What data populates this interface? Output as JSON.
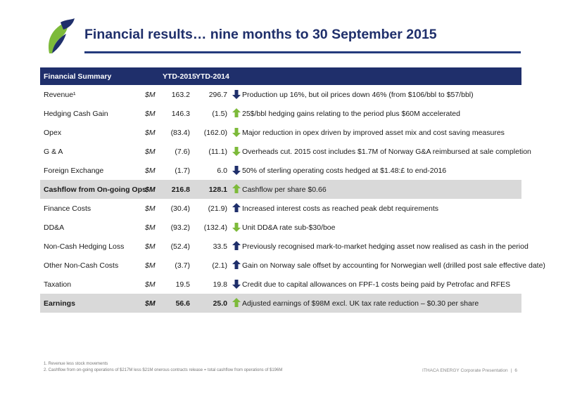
{
  "title": "Financial results… nine months to 30 September 2015",
  "colors": {
    "brand_navy": "#1f2f6b",
    "arrow_up": "#7dba3a",
    "arrow_down": "#1f2f6b",
    "arrow_good": "#7dba3a"
  },
  "table": {
    "headers": {
      "label": "Financial Summary",
      "ytd2015": "YTD-2015",
      "ytd2014": "YTD-2014"
    },
    "rows": [
      {
        "label": "Revenue¹",
        "unit": "$M",
        "ytd2015": "163.2",
        "ytd2014": "296.7",
        "arrow": "down",
        "arrow_color": "navy",
        "comment": "Production up 16%, but oil prices down 46% (from $106/bbl to $57/bbl)"
      },
      {
        "label": "Hedging Cash Gain",
        "unit": "$M",
        "ytd2015": "146.3",
        "ytd2014": "(1.5)",
        "arrow": "up",
        "arrow_color": "green",
        "comment": "25$/bbl hedging gains relating to the period plus $60M accelerated"
      },
      {
        "label": "Opex",
        "unit": "$M",
        "ytd2015": "(83.4)",
        "ytd2014": "(162.0)",
        "arrow": "down",
        "arrow_color": "green",
        "comment": "Major reduction in opex driven by improved asset mix and cost saving measures"
      },
      {
        "label": "G & A",
        "unit": "$M",
        "ytd2015": "(7.6)",
        "ytd2014": "(11.1)",
        "arrow": "down",
        "arrow_color": "green",
        "comment": "Overheads cut.  2015 cost includes $1.7M of Norway G&A reimbursed at sale completion"
      },
      {
        "label": "Foreign Exchange",
        "unit": "$M",
        "ytd2015": "(1.7)",
        "ytd2014": "6.0",
        "arrow": "down",
        "arrow_color": "navy",
        "comment": "50% of sterling operating costs hedged at $1.48:£ to end-2016"
      },
      {
        "label": "Cashflow from On-going Ops²",
        "unit": "$M",
        "ytd2015": "216.8",
        "ytd2014": "128.1",
        "arrow": "up",
        "arrow_color": "green",
        "comment": "Cashflow per share $0.66",
        "shaded": true
      },
      {
        "label": "Finance Costs",
        "unit": "$M",
        "ytd2015": "(30.4)",
        "ytd2014": "(21.9)",
        "arrow": "up",
        "arrow_color": "navy",
        "comment": "Increased interest costs as reached peak debt requirements"
      },
      {
        "label": "DD&A",
        "unit": "$M",
        "ytd2015": "(93.2)",
        "ytd2014": "(132.4)",
        "arrow": "down",
        "arrow_color": "green",
        "comment": "Unit DD&A rate sub-$30/boe"
      },
      {
        "label": "Non-Cash Hedging Loss",
        "unit": "$M",
        "ytd2015": "(52.4)",
        "ytd2014": "33.5",
        "arrow": "up",
        "arrow_color": "navy",
        "comment": "Previously recognised mark-to-market hedging asset now realised as cash in the period"
      },
      {
        "label": "Other Non-Cash Costs",
        "unit": "$M",
        "ytd2015": "(3.7)",
        "ytd2014": "(2.1)",
        "arrow": "up",
        "arrow_color": "navy",
        "comment": "Gain on Norway sale offset by accounting for Norwegian well (drilled post sale effective date)"
      },
      {
        "label": "Taxation",
        "unit": "$M",
        "ytd2015": "19.5",
        "ytd2014": "19.8",
        "arrow": "down",
        "arrow_color": "navy",
        "comment": "Credit due to capital allowances on FPF-1 costs being paid by Petrofac and RFES"
      },
      {
        "label": "Earnings",
        "unit": "$M",
        "ytd2015": "56.6",
        "ytd2014": "25.0",
        "arrow": "up",
        "arrow_color": "green",
        "comment": "Adjusted earnings of $98M excl. UK tax rate reduction – $0.30 per share",
        "shaded": true
      }
    ]
  },
  "footnotes": [
    "1. Revenue less stock movements",
    "2. Cashflow from on-going operations of $217M less $21M onerous contracts release = total cashflow from operations of $196M"
  ],
  "footer": {
    "company": "ITHACA ENERGY Corporate Presentation",
    "separator": "|",
    "page": "6"
  }
}
